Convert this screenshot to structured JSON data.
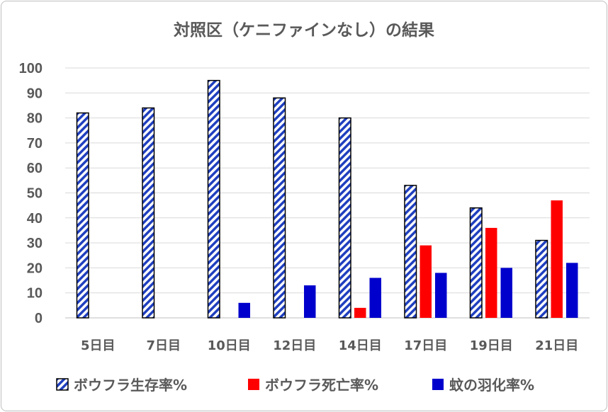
{
  "chart_data": {
    "type": "bar",
    "title": "対照区（ケニファインなし）の結果",
    "categories": [
      "5日目",
      "7日目",
      "10日目",
      "12日目",
      "14日目",
      "17日目",
      "19日目",
      "21日目"
    ],
    "series": [
      {
        "name": "ボウフラ生存率%",
        "values": [
          82,
          84,
          95,
          88,
          80,
          53,
          44,
          31
        ],
        "color": "#1f3fbf",
        "pattern": "diagonal-stripes"
      },
      {
        "name": "ボウフラ死亡率%",
        "values": [
          0,
          0,
          0,
          0,
          4,
          29,
          36,
          47
        ],
        "color": "#ff0000"
      },
      {
        "name": "蚊の羽化率%",
        "values": [
          0,
          0,
          6,
          13,
          16,
          18,
          20,
          22
        ],
        "color": "#0000cc"
      }
    ],
    "yticks": [
      "0",
      "10",
      "20",
      "30",
      "40",
      "50",
      "60",
      "70",
      "80",
      "90",
      "100"
    ],
    "ylim": [
      0,
      100
    ],
    "grid": true,
    "legend_position": "bottom"
  }
}
